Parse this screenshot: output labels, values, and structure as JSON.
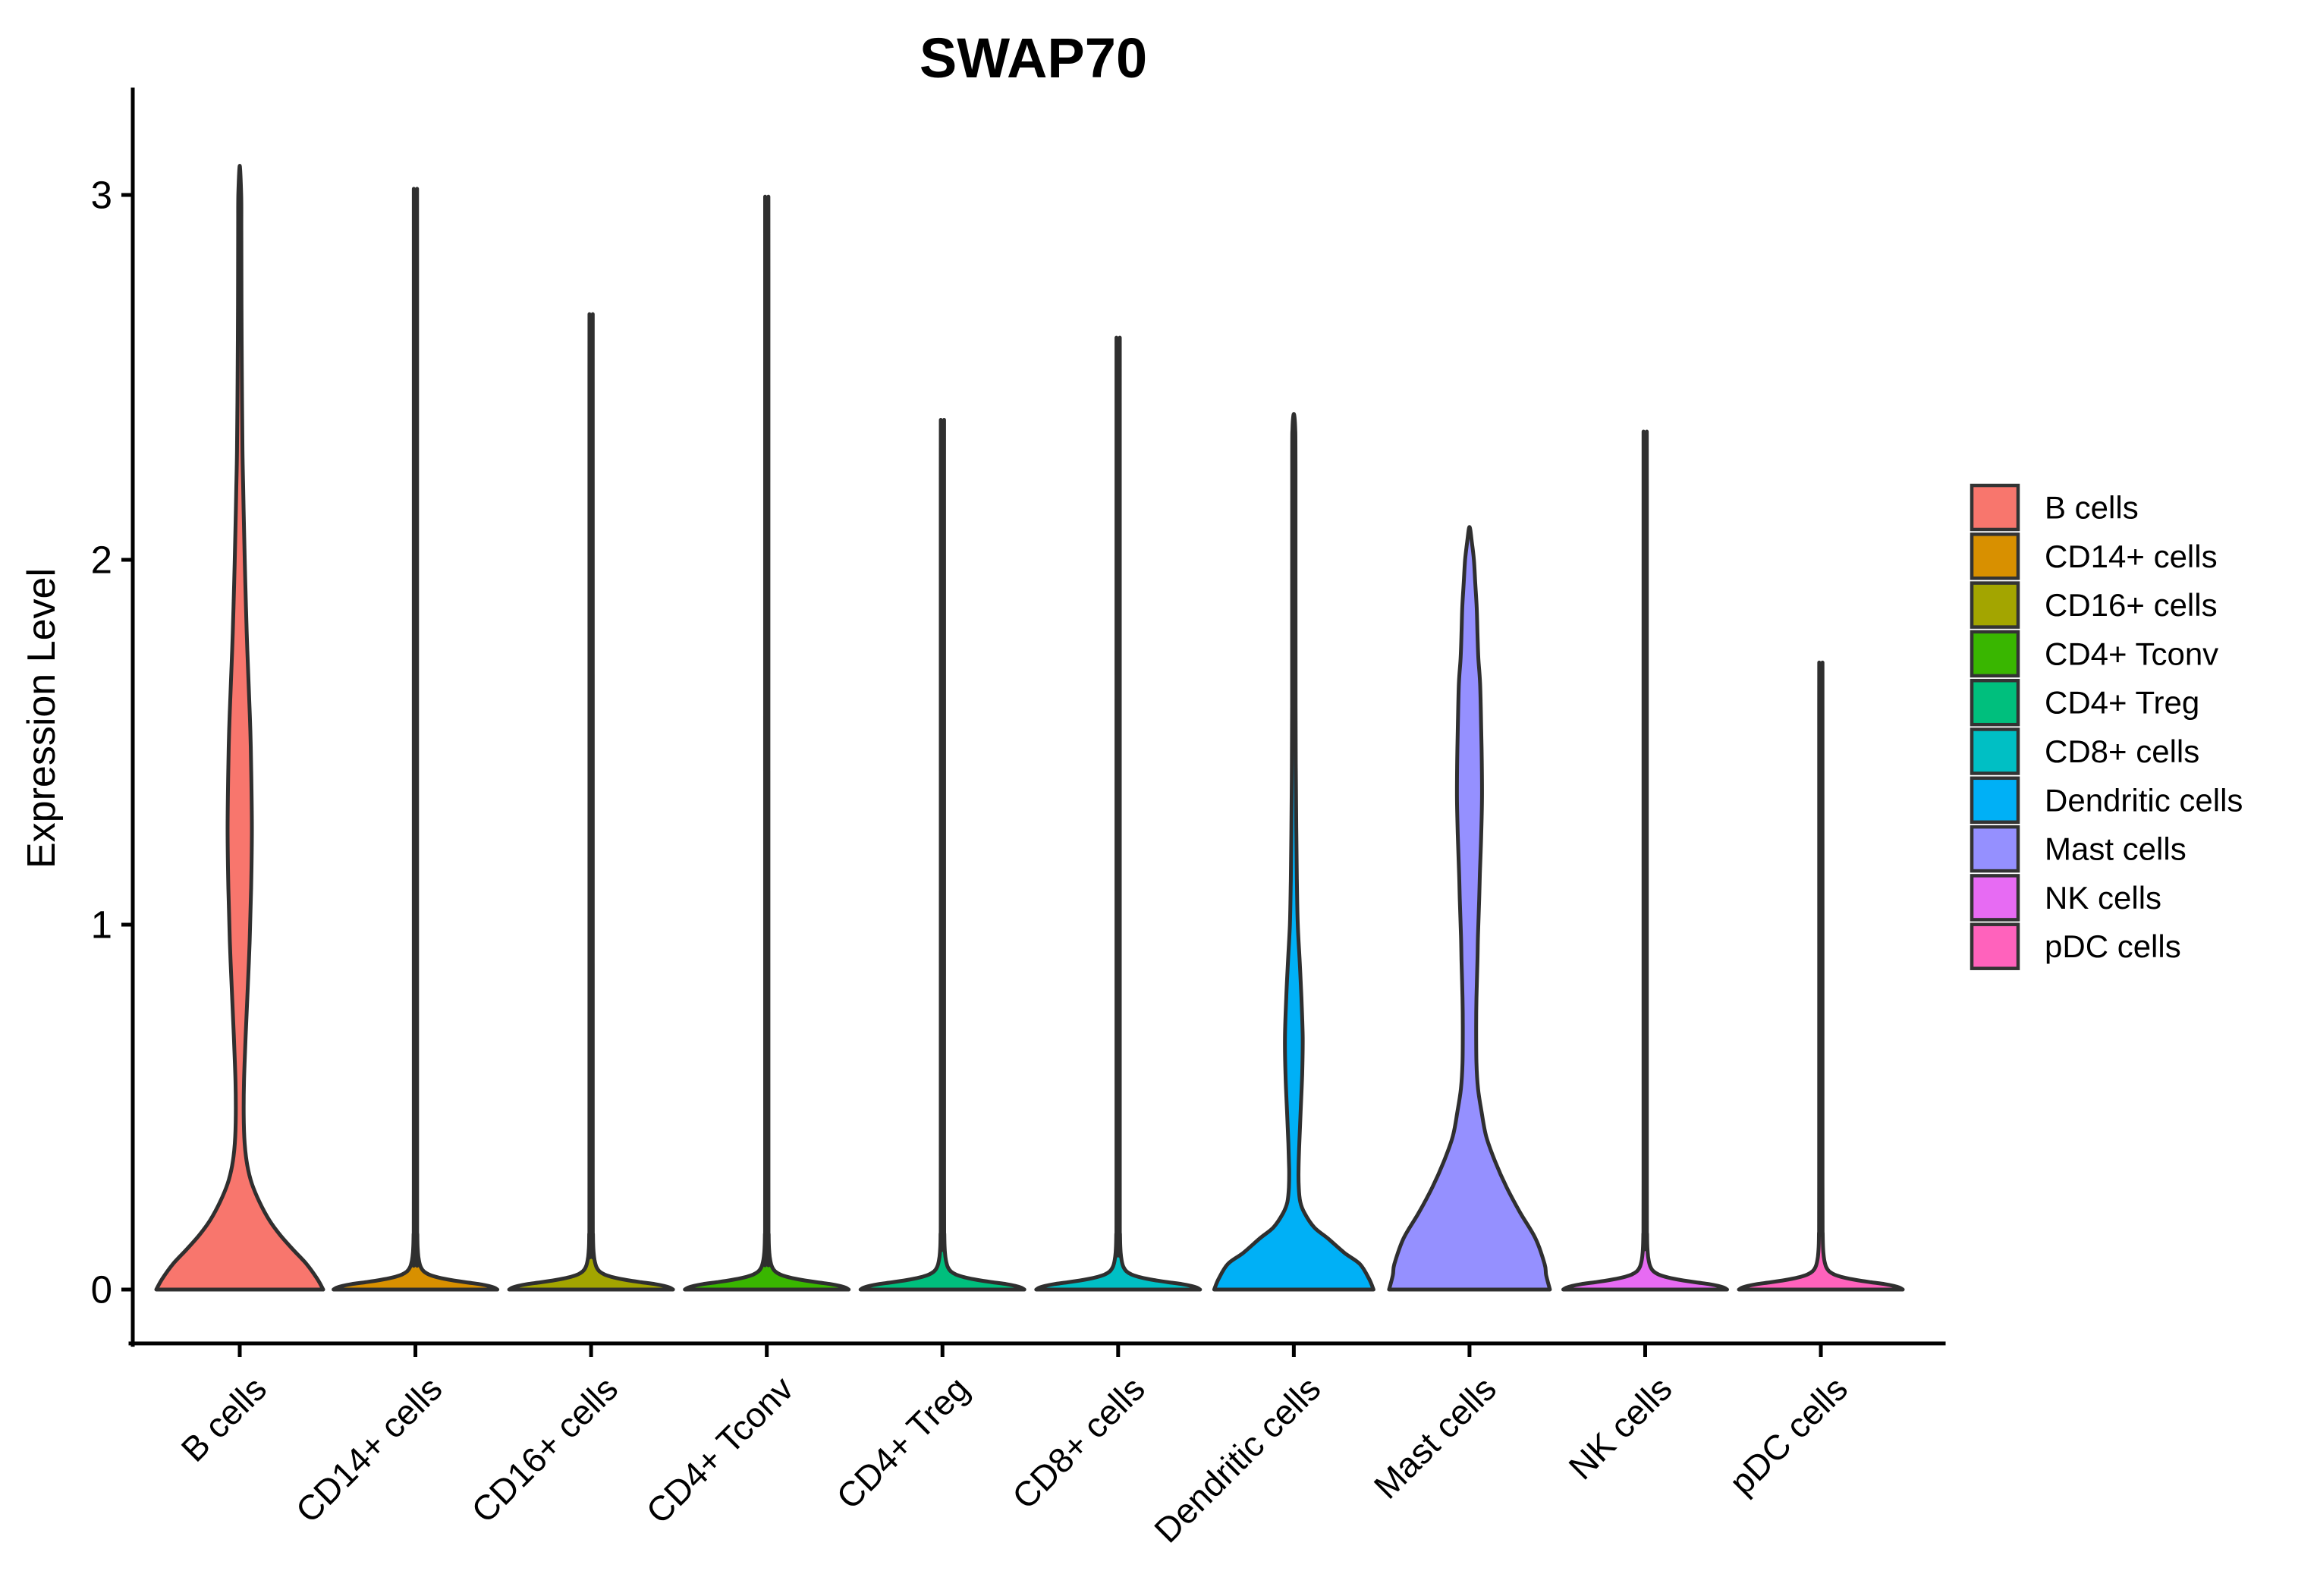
{
  "chart_data": {
    "type": "violin",
    "title": "SWAP70",
    "ylabel": "Expression Level",
    "xlabel": "",
    "ylim": [
      0,
      3.2
    ],
    "y_ticks": [
      "0",
      "1",
      "2",
      "3"
    ],
    "y_tick_values": [
      0,
      1,
      2,
      3
    ],
    "grid": "off",
    "legend_position": "right",
    "outline_color": "#2F2F2F",
    "categories": [
      "B cells",
      "CD14+ cells",
      "CD16+ cells",
      "CD4+ Tconv",
      "CD4+ Treg",
      "CD8+ cells",
      "Dendritic cells",
      "Mast cells",
      "NK cells",
      "pDC cells"
    ],
    "series": [
      {
        "name": "B cells",
        "color": "#F8766D",
        "max_expression": 3.08,
        "profile": [
          [
            0,
            110
          ],
          [
            0.03,
            102
          ],
          [
            0.07,
            88
          ],
          [
            0.11,
            70
          ],
          [
            0.15,
            53
          ],
          [
            0.19,
            39
          ],
          [
            0.24,
            26
          ],
          [
            0.29,
            16
          ],
          [
            0.34,
            10
          ],
          [
            0.4,
            6.5
          ],
          [
            0.48,
            5.2
          ],
          [
            0.57,
            5.6
          ],
          [
            0.68,
            7.5
          ],
          [
            0.8,
            10
          ],
          [
            0.95,
            13
          ],
          [
            1.1,
            15
          ],
          [
            1.25,
            16
          ],
          [
            1.4,
            15.3
          ],
          [
            1.53,
            14
          ],
          [
            1.66,
            11.7
          ],
          [
            1.8,
            9.2
          ],
          [
            1.94,
            7.3
          ],
          [
            2.08,
            5.7
          ],
          [
            2.18,
            4.7
          ],
          [
            2.3,
            3.6
          ],
          [
            2.5,
            2.8
          ],
          [
            2.7,
            2.3
          ],
          [
            2.9,
            2.1
          ],
          [
            3.0,
            1.9
          ],
          [
            3.08,
            0
          ]
        ]
      },
      {
        "name": "CD14+ cells",
        "color": "#D89000",
        "max_expression": 2.91,
        "profile": [
          [
            0,
            108
          ],
          [
            0.005,
            104
          ],
          [
            0.01,
            96
          ],
          [
            0.015,
            84
          ],
          [
            0.02,
            66
          ],
          [
            0.026,
            47
          ],
          [
            0.033,
            30
          ],
          [
            0.041,
            18
          ],
          [
            0.05,
            11
          ],
          [
            0.062,
            7
          ],
          [
            0.08,
            4.6
          ],
          [
            0.105,
            3.2
          ],
          [
            0.15,
            2.5
          ],
          [
            0.3,
            2.2
          ],
          [
            2.81,
            2.2
          ],
          [
            2.88,
            1.9
          ],
          [
            2.91,
            0
          ]
        ]
      },
      {
        "name": "CD16+ cells",
        "color": "#A3A500",
        "max_expression": 2.59,
        "profile": [
          [
            0,
            108
          ],
          [
            0.005,
            104
          ],
          [
            0.01,
            96
          ],
          [
            0.015,
            84
          ],
          [
            0.02,
            66
          ],
          [
            0.026,
            47
          ],
          [
            0.033,
            30
          ],
          [
            0.041,
            18
          ],
          [
            0.05,
            11
          ],
          [
            0.062,
            7
          ],
          [
            0.08,
            4.6
          ],
          [
            0.105,
            3.2
          ],
          [
            0.15,
            2.5
          ],
          [
            0.3,
            2.2
          ],
          [
            2.49,
            2.2
          ],
          [
            2.56,
            1.9
          ],
          [
            2.59,
            0
          ]
        ]
      },
      {
        "name": "CD4+ Tconv",
        "color": "#39B600",
        "max_expression": 2.89,
        "profile": [
          [
            0,
            108
          ],
          [
            0.005,
            104
          ],
          [
            0.01,
            96
          ],
          [
            0.015,
            84
          ],
          [
            0.02,
            66
          ],
          [
            0.026,
            47
          ],
          [
            0.033,
            30
          ],
          [
            0.041,
            18
          ],
          [
            0.05,
            11
          ],
          [
            0.062,
            7
          ],
          [
            0.08,
            4.6
          ],
          [
            0.105,
            3.2
          ],
          [
            0.15,
            2.5
          ],
          [
            0.3,
            2.2
          ],
          [
            2.79,
            2.2
          ],
          [
            2.86,
            1.9
          ],
          [
            2.89,
            0
          ]
        ]
      },
      {
        "name": "CD4+ Treg",
        "color": "#00BF7D",
        "max_expression": 2.32,
        "profile": [
          [
            0,
            108
          ],
          [
            0.005,
            104
          ],
          [
            0.01,
            96
          ],
          [
            0.015,
            84
          ],
          [
            0.02,
            66
          ],
          [
            0.026,
            47
          ],
          [
            0.033,
            30
          ],
          [
            0.041,
            18
          ],
          [
            0.05,
            11
          ],
          [
            0.062,
            7
          ],
          [
            0.08,
            4.6
          ],
          [
            0.105,
            3.2
          ],
          [
            0.15,
            2.5
          ],
          [
            0.3,
            2.2
          ],
          [
            2.22,
            2.2
          ],
          [
            2.29,
            1.9
          ],
          [
            2.32,
            0
          ]
        ]
      },
      {
        "name": "CD8+ cells",
        "color": "#00BFC4",
        "max_expression": 2.53,
        "profile": [
          [
            0,
            108
          ],
          [
            0.005,
            104
          ],
          [
            0.01,
            96
          ],
          [
            0.015,
            84
          ],
          [
            0.02,
            66
          ],
          [
            0.026,
            47
          ],
          [
            0.033,
            30
          ],
          [
            0.041,
            18
          ],
          [
            0.05,
            11
          ],
          [
            0.062,
            7
          ],
          [
            0.08,
            4.6
          ],
          [
            0.105,
            3.2
          ],
          [
            0.15,
            2.5
          ],
          [
            0.3,
            2.2
          ],
          [
            2.43,
            2.2
          ],
          [
            2.5,
            1.9
          ],
          [
            2.53,
            0
          ]
        ]
      },
      {
        "name": "Dendritic cells",
        "color": "#00B0F6",
        "max_expression": 2.4,
        "profile": [
          [
            0,
            105
          ],
          [
            0.03,
            99
          ],
          [
            0.07,
            87
          ],
          [
            0.1,
            67
          ],
          [
            0.14,
            45
          ],
          [
            0.17,
            27
          ],
          [
            0.21,
            14
          ],
          [
            0.24,
            8.5
          ],
          [
            0.28,
            6.5
          ],
          [
            0.33,
            6.2
          ],
          [
            0.4,
            7.2
          ],
          [
            0.49,
            9
          ],
          [
            0.59,
            11
          ],
          [
            0.69,
            11.7
          ],
          [
            0.8,
            10
          ],
          [
            0.9,
            7.7
          ],
          [
            1.0,
            5.2
          ],
          [
            1.12,
            4
          ],
          [
            1.25,
            3.3
          ],
          [
            1.4,
            2.7
          ],
          [
            1.6,
            2.3
          ],
          [
            2.25,
            2.2
          ],
          [
            2.36,
            1.8
          ],
          [
            2.4,
            0
          ]
        ]
      },
      {
        "name": "Mast cells",
        "color": "#9590FF",
        "max_expression": 2.09,
        "profile": [
          [
            0,
            106
          ],
          [
            0.04,
            101
          ],
          [
            0.07,
            99
          ],
          [
            0.14,
            87
          ],
          [
            0.21,
            67
          ],
          [
            0.28,
            49
          ],
          [
            0.35,
            34
          ],
          [
            0.42,
            22
          ],
          [
            0.49,
            15.7
          ],
          [
            0.55,
            11.3
          ],
          [
            0.62,
            9.2
          ],
          [
            0.72,
            8.8
          ],
          [
            0.8,
            9.2
          ],
          [
            0.9,
            10.5
          ],
          [
            0.97,
            11.2
          ],
          [
            1.07,
            12.8
          ],
          [
            1.14,
            13.7
          ],
          [
            1.25,
            15.5
          ],
          [
            1.35,
            16.5
          ],
          [
            1.45,
            16.2
          ],
          [
            1.55,
            15.3
          ],
          [
            1.66,
            14
          ],
          [
            1.73,
            11.7
          ],
          [
            1.8,
            10.5
          ],
          [
            1.87,
            9.5
          ],
          [
            1.94,
            7.5
          ],
          [
            2.0,
            5.8
          ],
          [
            2.05,
            3
          ],
          [
            2.09,
            0
          ]
        ]
      },
      {
        "name": "NK cells",
        "color": "#E76BF3",
        "max_expression": 2.29,
        "profile": [
          [
            0,
            108
          ],
          [
            0.005,
            104
          ],
          [
            0.01,
            96
          ],
          [
            0.015,
            84
          ],
          [
            0.02,
            66
          ],
          [
            0.026,
            47
          ],
          [
            0.033,
            30
          ],
          [
            0.041,
            18
          ],
          [
            0.05,
            11
          ],
          [
            0.062,
            7
          ],
          [
            0.08,
            4.6
          ],
          [
            0.105,
            3.2
          ],
          [
            0.15,
            2.5
          ],
          [
            0.3,
            2.2
          ],
          [
            2.19,
            2.2
          ],
          [
            2.26,
            1.9
          ],
          [
            2.29,
            0
          ]
        ]
      },
      {
        "name": "pDC cells",
        "color": "#FF62BC",
        "max_expression": 1.7,
        "profile": [
          [
            0,
            108
          ],
          [
            0.005,
            104
          ],
          [
            0.01,
            96
          ],
          [
            0.015,
            84
          ],
          [
            0.02,
            66
          ],
          [
            0.026,
            47
          ],
          [
            0.033,
            30
          ],
          [
            0.041,
            18
          ],
          [
            0.05,
            11
          ],
          [
            0.062,
            7
          ],
          [
            0.08,
            4.6
          ],
          [
            0.105,
            3.2
          ],
          [
            0.15,
            2.5
          ],
          [
            0.3,
            2.2
          ],
          [
            1.6,
            2.2
          ],
          [
            1.67,
            1.9
          ],
          [
            1.7,
            0
          ]
        ]
      }
    ]
  },
  "legend": {
    "items": [
      {
        "label": "B cells",
        "color": "#F8766D"
      },
      {
        "label": "CD14+ cells",
        "color": "#D89000"
      },
      {
        "label": "CD16+ cells",
        "color": "#A3A500"
      },
      {
        "label": "CD4+ Tconv",
        "color": "#39B600"
      },
      {
        "label": "CD4+ Treg",
        "color": "#00BF7D"
      },
      {
        "label": "CD8+ cells",
        "color": "#00BFC4"
      },
      {
        "label": "Dendritic cells",
        "color": "#00B0F6"
      },
      {
        "label": "Mast cells",
        "color": "#9590FF"
      },
      {
        "label": "NK cells",
        "color": "#E76BF3"
      },
      {
        "label": "pDC cells",
        "color": "#FF62BC"
      }
    ]
  }
}
